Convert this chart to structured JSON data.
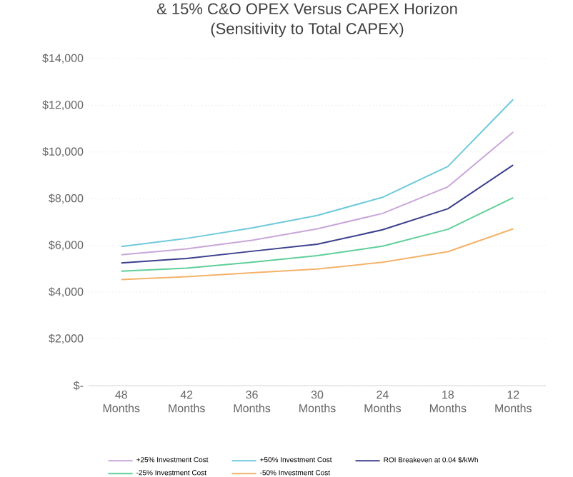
{
  "chart_data": {
    "type": "line",
    "title": "& 15% C&O OPEX Versus CAPEX Horizon",
    "subtitle": "(Sensitivity to Total CAPEX)",
    "categories": [
      "48 Months",
      "42 Months",
      "36 Months",
      "30 Months",
      "24 Months",
      "18 Months",
      "12 Months"
    ],
    "series": [
      {
        "name": "+25% Investment Cost",
        "color": "#c9a6d9",
        "values": [
          5600,
          5850,
          6220,
          6710,
          7370,
          8510,
          10850
        ]
      },
      {
        "name": "+50% Investment Cost",
        "color": "#6ec9dc",
        "values": [
          5950,
          6300,
          6750,
          7280,
          8060,
          9380,
          12250
        ]
      },
      {
        "name": "ROI Breakeven at 0.04 $/kWh",
        "color": "#3b3f8c",
        "values": [
          5250,
          5440,
          5750,
          6050,
          6670,
          7570,
          9440
        ]
      },
      {
        "name": "-25% Investment Cost",
        "color": "#5fcf9a",
        "values": [
          4900,
          5030,
          5280,
          5560,
          5970,
          6690,
          8040
        ]
      },
      {
        "name": "-50% Investment Cost",
        "color": "#f4b26a",
        "values": [
          4540,
          4660,
          4830,
          4990,
          5280,
          5730,
          6710
        ]
      }
    ],
    "ylim": [
      0,
      14000
    ],
    "yticks": [
      {
        "value": 0,
        "label": "$-"
      },
      {
        "value": 2000,
        "label": "$2,000"
      },
      {
        "value": 4000,
        "label": "$4,000"
      },
      {
        "value": 6000,
        "label": "$6,000"
      },
      {
        "value": 8000,
        "label": "$8,000"
      },
      {
        "value": 10000,
        "label": "$10,000"
      },
      {
        "value": 12000,
        "label": "$12,000"
      },
      {
        "value": 14000,
        "label": "$14,000"
      }
    ],
    "grid": "y",
    "legend": "bottom",
    "marker": "none",
    "line_style": "solid"
  }
}
